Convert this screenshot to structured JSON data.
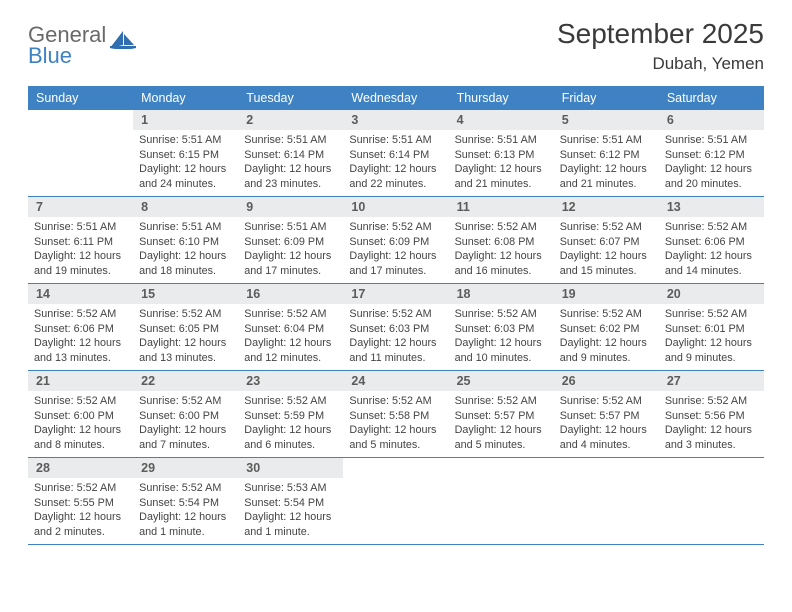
{
  "branding": {
    "logo_word1": "General",
    "logo_word2": "Blue",
    "logo_fill": "#2f6fb0",
    "text_gray": "#6a6a6a",
    "text_blue": "#3e82c4"
  },
  "title": "September 2025",
  "location": "Dubah, Yemen",
  "header_bg": "#3e82c4",
  "header_fg": "#ffffff",
  "daynum_bg": "#e9ebec",
  "rule_color": "#3e82c4",
  "weekdays": [
    "Sunday",
    "Monday",
    "Tuesday",
    "Wednesday",
    "Thursday",
    "Friday",
    "Saturday"
  ],
  "weeks": [
    [
      {
        "n": "",
        "sr": "",
        "ss": "",
        "dl": ""
      },
      {
        "n": "1",
        "sr": "5:51 AM",
        "ss": "6:15 PM",
        "dl": "12 hours and 24 minutes."
      },
      {
        "n": "2",
        "sr": "5:51 AM",
        "ss": "6:14 PM",
        "dl": "12 hours and 23 minutes."
      },
      {
        "n": "3",
        "sr": "5:51 AM",
        "ss": "6:14 PM",
        "dl": "12 hours and 22 minutes."
      },
      {
        "n": "4",
        "sr": "5:51 AM",
        "ss": "6:13 PM",
        "dl": "12 hours and 21 minutes."
      },
      {
        "n": "5",
        "sr": "5:51 AM",
        "ss": "6:12 PM",
        "dl": "12 hours and 21 minutes."
      },
      {
        "n": "6",
        "sr": "5:51 AM",
        "ss": "6:12 PM",
        "dl": "12 hours and 20 minutes."
      }
    ],
    [
      {
        "n": "7",
        "sr": "5:51 AM",
        "ss": "6:11 PM",
        "dl": "12 hours and 19 minutes."
      },
      {
        "n": "8",
        "sr": "5:51 AM",
        "ss": "6:10 PM",
        "dl": "12 hours and 18 minutes."
      },
      {
        "n": "9",
        "sr": "5:51 AM",
        "ss": "6:09 PM",
        "dl": "12 hours and 17 minutes."
      },
      {
        "n": "10",
        "sr": "5:52 AM",
        "ss": "6:09 PM",
        "dl": "12 hours and 17 minutes."
      },
      {
        "n": "11",
        "sr": "5:52 AM",
        "ss": "6:08 PM",
        "dl": "12 hours and 16 minutes."
      },
      {
        "n": "12",
        "sr": "5:52 AM",
        "ss": "6:07 PM",
        "dl": "12 hours and 15 minutes."
      },
      {
        "n": "13",
        "sr": "5:52 AM",
        "ss": "6:06 PM",
        "dl": "12 hours and 14 minutes."
      }
    ],
    [
      {
        "n": "14",
        "sr": "5:52 AM",
        "ss": "6:06 PM",
        "dl": "12 hours and 13 minutes."
      },
      {
        "n": "15",
        "sr": "5:52 AM",
        "ss": "6:05 PM",
        "dl": "12 hours and 13 minutes."
      },
      {
        "n": "16",
        "sr": "5:52 AM",
        "ss": "6:04 PM",
        "dl": "12 hours and 12 minutes."
      },
      {
        "n": "17",
        "sr": "5:52 AM",
        "ss": "6:03 PM",
        "dl": "12 hours and 11 minutes."
      },
      {
        "n": "18",
        "sr": "5:52 AM",
        "ss": "6:03 PM",
        "dl": "12 hours and 10 minutes."
      },
      {
        "n": "19",
        "sr": "5:52 AM",
        "ss": "6:02 PM",
        "dl": "12 hours and 9 minutes."
      },
      {
        "n": "20",
        "sr": "5:52 AM",
        "ss": "6:01 PM",
        "dl": "12 hours and 9 minutes."
      }
    ],
    [
      {
        "n": "21",
        "sr": "5:52 AM",
        "ss": "6:00 PM",
        "dl": "12 hours and 8 minutes."
      },
      {
        "n": "22",
        "sr": "5:52 AM",
        "ss": "6:00 PM",
        "dl": "12 hours and 7 minutes."
      },
      {
        "n": "23",
        "sr": "5:52 AM",
        "ss": "5:59 PM",
        "dl": "12 hours and 6 minutes."
      },
      {
        "n": "24",
        "sr": "5:52 AM",
        "ss": "5:58 PM",
        "dl": "12 hours and 5 minutes."
      },
      {
        "n": "25",
        "sr": "5:52 AM",
        "ss": "5:57 PM",
        "dl": "12 hours and 5 minutes."
      },
      {
        "n": "26",
        "sr": "5:52 AM",
        "ss": "5:57 PM",
        "dl": "12 hours and 4 minutes."
      },
      {
        "n": "27",
        "sr": "5:52 AM",
        "ss": "5:56 PM",
        "dl": "12 hours and 3 minutes."
      }
    ],
    [
      {
        "n": "28",
        "sr": "5:52 AM",
        "ss": "5:55 PM",
        "dl": "12 hours and 2 minutes."
      },
      {
        "n": "29",
        "sr": "5:52 AM",
        "ss": "5:54 PM",
        "dl": "12 hours and 1 minute."
      },
      {
        "n": "30",
        "sr": "5:53 AM",
        "ss": "5:54 PM",
        "dl": "12 hours and 1 minute."
      },
      {
        "n": "",
        "sr": "",
        "ss": "",
        "dl": ""
      },
      {
        "n": "",
        "sr": "",
        "ss": "",
        "dl": ""
      },
      {
        "n": "",
        "sr": "",
        "ss": "",
        "dl": ""
      },
      {
        "n": "",
        "sr": "",
        "ss": "",
        "dl": ""
      }
    ]
  ],
  "labels": {
    "sunrise": "Sunrise: ",
    "sunset": "Sunset: ",
    "daylight": "Daylight: "
  }
}
